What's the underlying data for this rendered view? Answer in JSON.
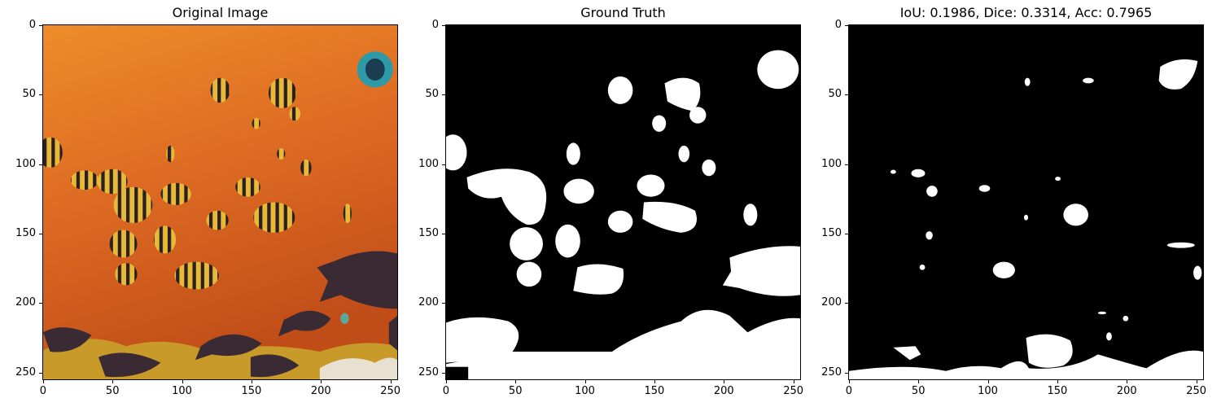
{
  "panels": [
    {
      "title": "Original Image",
      "image": "underwater-fish-photo"
    },
    {
      "title": "Ground Truth",
      "image": "ground-truth-mask"
    },
    {
      "title": "IoU: 0.1986, Dice: 0.3314, Acc: 0.7965",
      "image": "predicted-mask"
    }
  ],
  "axes": {
    "x_ticks": [
      "0",
      "50",
      "100",
      "150",
      "200",
      "250"
    ],
    "y_ticks": [
      "0",
      "50",
      "100",
      "150",
      "200",
      "250"
    ],
    "x_tick_values": [
      0,
      50,
      100,
      150,
      200,
      250
    ],
    "y_tick_values": [
      0,
      50,
      100,
      150,
      200,
      250
    ],
    "range": [
      0,
      256
    ]
  },
  "colors": {
    "mask_foreground": "#ffffff",
    "mask_background": "#000000",
    "water_top": "#e98a2a",
    "water_bottom": "#c9521a",
    "fish_yellow": "#e6b43a",
    "fish_dark": "#3a2a34"
  }
}
